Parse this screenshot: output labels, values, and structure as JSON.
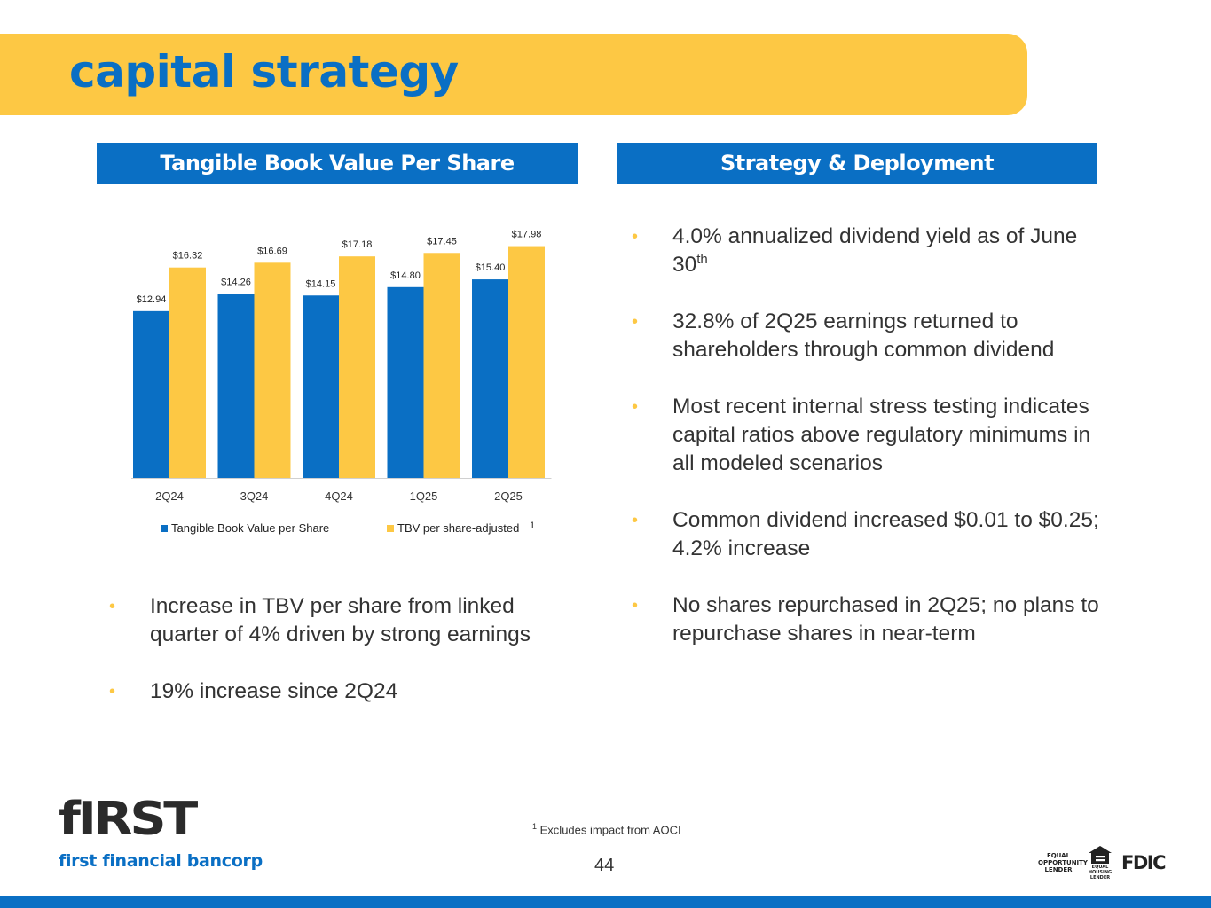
{
  "title": "capital strategy",
  "left_header": "Tangible Book Value Per Share",
  "right_header": "Strategy & Deployment",
  "chart_data": {
    "type": "bar",
    "title": "Tangible Book Value Per Share",
    "categories": [
      "2Q24",
      "3Q24",
      "4Q24",
      "1Q25",
      "2Q25"
    ],
    "series": [
      {
        "name": "Tangible Book Value per Share",
        "color": "#0a6fc4",
        "values": [
          12.94,
          14.26,
          14.15,
          14.8,
          15.4
        ],
        "labels": [
          "$12.94",
          "$14.26",
          "$14.15",
          "$14.80",
          "$15.40"
        ]
      },
      {
        "name": "TBV per share-adjusted",
        "color": "#fdc844",
        "values": [
          16.32,
          16.69,
          17.18,
          17.45,
          17.98
        ],
        "labels": [
          "$16.32",
          "$16.69",
          "$17.18",
          "$17.45",
          "$17.98"
        ]
      }
    ],
    "legend_superscript": "1",
    "ylim": [
      0,
      18.5
    ],
    "legend_position": "bottom",
    "grid": false
  },
  "left_bullets": [
    "Increase in TBV per share from linked quarter of 4% driven by strong earnings",
    "19% increase since 2Q24"
  ],
  "right_bullets": [
    {
      "text": "4.0% annualized dividend yield as of June 30",
      "sup": "th"
    },
    {
      "text": "32.8% of 2Q25 earnings returned to shareholders through common dividend"
    },
    {
      "text": "Most recent internal stress testing indicates capital ratios above regulatory minimums in all modeled scenarios"
    },
    {
      "text": "Common dividend increased $0.01 to $0.25; 4.2% increase"
    },
    {
      "text": "No shares repurchased in 2Q25; no plans to repurchase shares in near-term"
    }
  ],
  "footnote": {
    "mark": "1",
    "text": "Excludes impact from AOCI"
  },
  "page_number": "44",
  "logo": {
    "word": "fIRST",
    "subtitle": "first financial bancorp"
  },
  "regulatory": {
    "eol": "EQUAL OPPORTUNITY LENDER",
    "ehl": "EQUAL HOUSING LENDER",
    "fdic": "FDIC"
  },
  "colors": {
    "blue": "#0a6fc4",
    "yellow": "#fdc844"
  }
}
